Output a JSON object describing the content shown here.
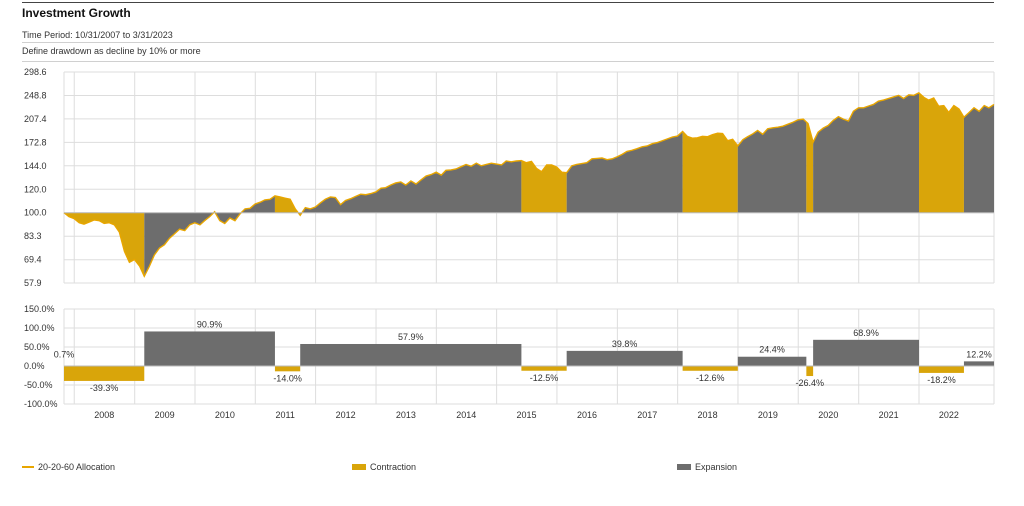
{
  "header": {
    "title": "Investment Growth",
    "time_period": "Time Period: 10/31/2007 to 3/31/2023",
    "drawdown_def": "Define drawdown as decline by 10% or more"
  },
  "colors": {
    "line": "#e8a600",
    "contraction": "#d9a50a",
    "expansion": "#6d6d6d",
    "grid": "#dddddd"
  },
  "legend": [
    {
      "label": "20-20-60 Allocation",
      "kind": "line",
      "color": "#e8a600"
    },
    {
      "label": "Contraction",
      "kind": "box",
      "color": "#d9a50a"
    },
    {
      "label": "Expansion",
      "kind": "box",
      "color": "#6d6d6d"
    }
  ],
  "chart_data": [
    {
      "type": "area",
      "title": "Investment Growth",
      "series": [
        {
          "name": "20-20-60 Allocation"
        }
      ],
      "x_range": [
        "2007-10-31",
        "2023-03-31"
      ],
      "y_ticks": [
        "298.6",
        "248.8",
        "207.4",
        "172.8",
        "144.0",
        "120.0",
        "100.0",
        "83.3",
        "69.4",
        "57.9"
      ],
      "y_scale": "log",
      "ylim": [
        57.9,
        298.6
      ],
      "x_ticks": [
        "2008",
        "2009",
        "2010",
        "2011",
        "2012",
        "2013",
        "2014",
        "2015",
        "2016",
        "2017",
        "2018",
        "2019",
        "2020",
        "2021",
        "2022"
      ],
      "baseline": 100,
      "points": [
        [
          "2007-10-31",
          100.0
        ],
        [
          "2007-11-30",
          97.0
        ],
        [
          "2007-12-31",
          95.5
        ],
        [
          "2008-01-31",
          92.5
        ],
        [
          "2008-02-29",
          91.5
        ],
        [
          "2008-03-31",
          93.0
        ],
        [
          "2008-04-30",
          94.5
        ],
        [
          "2008-05-31",
          94.0
        ],
        [
          "2008-06-30",
          92.0
        ],
        [
          "2008-07-31",
          92.5
        ],
        [
          "2008-08-31",
          91.0
        ],
        [
          "2008-09-30",
          86.0
        ],
        [
          "2008-10-31",
          74.0
        ],
        [
          "2008-11-30",
          68.0
        ],
        [
          "2008-12-31",
          69.5
        ],
        [
          "2009-01-31",
          66.0
        ],
        [
          "2009-02-28",
          61.0
        ],
        [
          "2009-03-31",
          66.0
        ],
        [
          "2009-04-30",
          72.0
        ],
        [
          "2009-05-31",
          76.0
        ],
        [
          "2009-06-30",
          78.0
        ],
        [
          "2009-07-31",
          82.0
        ],
        [
          "2009-08-31",
          85.0
        ],
        [
          "2009-09-30",
          88.0
        ],
        [
          "2009-10-31",
          87.0
        ],
        [
          "2009-11-30",
          91.0
        ],
        [
          "2009-12-31",
          92.5
        ],
        [
          "2010-01-31",
          91.0
        ],
        [
          "2010-02-28",
          94.0
        ],
        [
          "2010-03-31",
          97.0
        ],
        [
          "2010-04-30",
          100.7
        ],
        [
          "2010-05-31",
          94.0
        ],
        [
          "2010-06-30",
          92.0
        ],
        [
          "2010-07-31",
          96.0
        ],
        [
          "2010-08-31",
          94.0
        ],
        [
          "2010-09-30",
          99.0
        ],
        [
          "2010-10-31",
          103.0
        ],
        [
          "2010-11-30",
          103.5
        ],
        [
          "2010-12-31",
          107.0
        ],
        [
          "2011-01-31",
          108.5
        ],
        [
          "2011-02-28",
          110.5
        ],
        [
          "2011-03-31",
          111.0
        ],
        [
          "2011-04-30",
          114.0
        ],
        [
          "2011-05-31",
          113.0
        ],
        [
          "2011-06-30",
          112.0
        ],
        [
          "2011-07-31",
          111.0
        ],
        [
          "2011-08-31",
          103.0
        ],
        [
          "2011-09-30",
          98.0
        ],
        [
          "2011-10-31",
          104.0
        ],
        [
          "2011-11-30",
          103.0
        ],
        [
          "2011-12-31",
          104.5
        ],
        [
          "2012-01-31",
          108.0
        ],
        [
          "2012-02-29",
          111.0
        ],
        [
          "2012-03-31",
          113.0
        ],
        [
          "2012-04-30",
          112.5
        ],
        [
          "2012-05-31",
          106.5
        ],
        [
          "2012-06-30",
          110.0
        ],
        [
          "2012-07-31",
          111.5
        ],
        [
          "2012-08-31",
          113.5
        ],
        [
          "2012-09-30",
          115.5
        ],
        [
          "2012-10-31",
          115.0
        ],
        [
          "2012-11-30",
          116.0
        ],
        [
          "2012-12-31",
          117.5
        ],
        [
          "2013-01-31",
          121.0
        ],
        [
          "2013-02-28",
          121.5
        ],
        [
          "2013-03-31",
          124.0
        ],
        [
          "2013-04-30",
          126.0
        ],
        [
          "2013-05-31",
          127.0
        ],
        [
          "2013-06-30",
          124.0
        ],
        [
          "2013-07-31",
          128.0
        ],
        [
          "2013-08-31",
          125.0
        ],
        [
          "2013-09-30",
          129.0
        ],
        [
          "2013-10-31",
          133.0
        ],
        [
          "2013-11-30",
          134.5
        ],
        [
          "2013-12-31",
          137.0
        ],
        [
          "2014-01-31",
          134.0
        ],
        [
          "2014-02-28",
          139.0
        ],
        [
          "2014-03-31",
          139.5
        ],
        [
          "2014-04-30",
          140.5
        ],
        [
          "2014-05-31",
          143.0
        ],
        [
          "2014-06-30",
          145.5
        ],
        [
          "2014-07-31",
          143.5
        ],
        [
          "2014-08-31",
          147.0
        ],
        [
          "2014-09-30",
          144.0
        ],
        [
          "2014-10-31",
          145.5
        ],
        [
          "2014-11-30",
          147.0
        ],
        [
          "2014-12-31",
          146.0
        ],
        [
          "2015-01-31",
          145.0
        ],
        [
          "2015-02-28",
          149.5
        ],
        [
          "2015-03-31",
          148.5
        ],
        [
          "2015-04-30",
          149.5
        ],
        [
          "2015-05-31",
          150.0
        ],
        [
          "2015-06-30",
          147.5
        ],
        [
          "2015-07-31",
          149.0
        ],
        [
          "2015-08-31",
          141.0
        ],
        [
          "2015-09-30",
          137.5
        ],
        [
          "2015-10-31",
          145.0
        ],
        [
          "2015-11-30",
          145.0
        ],
        [
          "2015-12-31",
          142.5
        ],
        [
          "2016-01-31",
          137.0
        ],
        [
          "2016-02-29",
          136.5
        ],
        [
          "2016-03-31",
          144.0
        ],
        [
          "2016-04-30",
          145.5
        ],
        [
          "2016-05-31",
          146.5
        ],
        [
          "2016-06-30",
          147.5
        ],
        [
          "2016-07-31",
          152.0
        ],
        [
          "2016-08-31",
          152.5
        ],
        [
          "2016-09-30",
          153.0
        ],
        [
          "2016-10-31",
          151.0
        ],
        [
          "2016-11-30",
          152.0
        ],
        [
          "2016-12-31",
          154.5
        ],
        [
          "2017-01-31",
          157.5
        ],
        [
          "2017-02-28",
          161.0
        ],
        [
          "2017-03-31",
          162.5
        ],
        [
          "2017-04-30",
          164.5
        ],
        [
          "2017-05-31",
          167.0
        ],
        [
          "2017-06-30",
          168.0
        ],
        [
          "2017-07-31",
          171.0
        ],
        [
          "2017-08-31",
          172.5
        ],
        [
          "2017-09-30",
          175.0
        ],
        [
          "2017-10-31",
          177.5
        ],
        [
          "2017-11-30",
          180.0
        ],
        [
          "2017-12-31",
          181.5
        ],
        [
          "2018-01-31",
          188.0
        ],
        [
          "2018-02-28",
          181.0
        ],
        [
          "2018-03-31",
          178.5
        ],
        [
          "2018-04-30",
          179.0
        ],
        [
          "2018-05-31",
          181.0
        ],
        [
          "2018-06-30",
          180.5
        ],
        [
          "2018-07-31",
          183.5
        ],
        [
          "2018-08-31",
          185.5
        ],
        [
          "2018-09-30",
          185.0
        ],
        [
          "2018-10-31",
          175.0
        ],
        [
          "2018-11-30",
          177.0
        ],
        [
          "2018-12-31",
          168.0
        ],
        [
          "2019-01-31",
          176.5
        ],
        [
          "2019-02-28",
          180.5
        ],
        [
          "2019-03-31",
          184.5
        ],
        [
          "2019-04-30",
          189.5
        ],
        [
          "2019-05-31",
          184.0
        ],
        [
          "2019-06-30",
          192.0
        ],
        [
          "2019-07-31",
          193.5
        ],
        [
          "2019-08-31",
          194.5
        ],
        [
          "2019-09-30",
          196.0
        ],
        [
          "2019-10-31",
          199.0
        ],
        [
          "2019-11-30",
          202.0
        ],
        [
          "2019-12-31",
          206.0
        ],
        [
          "2020-01-31",
          207.0
        ],
        [
          "2020-02-29",
          200.0
        ],
        [
          "2020-03-31",
          173.0
        ],
        [
          "2020-04-30",
          187.0
        ],
        [
          "2020-05-31",
          193.0
        ],
        [
          "2020-06-30",
          197.0
        ],
        [
          "2020-07-31",
          205.0
        ],
        [
          "2020-08-31",
          211.0
        ],
        [
          "2020-09-30",
          207.0
        ],
        [
          "2020-10-31",
          204.0
        ],
        [
          "2020-11-30",
          220.0
        ],
        [
          "2020-12-31",
          226.0
        ],
        [
          "2021-01-31",
          226.0
        ],
        [
          "2021-02-28",
          229.0
        ],
        [
          "2021-03-31",
          232.0
        ],
        [
          "2021-04-30",
          238.0
        ],
        [
          "2021-05-31",
          240.0
        ],
        [
          "2021-06-30",
          243.0
        ],
        [
          "2021-07-31",
          246.0
        ],
        [
          "2021-08-31",
          249.0
        ],
        [
          "2021-09-30",
          243.0
        ],
        [
          "2021-10-31",
          250.0
        ],
        [
          "2021-11-30",
          249.0
        ],
        [
          "2021-12-31",
          254.0
        ],
        [
          "2022-01-31",
          245.0
        ],
        [
          "2022-02-28",
          240.0
        ],
        [
          "2022-03-31",
          244.0
        ],
        [
          "2022-04-30",
          229.0
        ],
        [
          "2022-05-31",
          230.0
        ],
        [
          "2022-06-30",
          218.0
        ],
        [
          "2022-07-31",
          230.0
        ],
        [
          "2022-08-31",
          224.0
        ],
        [
          "2022-09-30",
          210.0
        ],
        [
          "2022-10-31",
          218.0
        ],
        [
          "2022-11-30",
          226.0
        ],
        [
          "2022-12-31",
          220.0
        ],
        [
          "2023-01-31",
          230.0
        ],
        [
          "2023-02-28",
          226.0
        ],
        [
          "2023-03-31",
          232.0
        ]
      ],
      "regimes": [
        {
          "type": "contraction",
          "start": "2007-10-31",
          "end": "2009-02-28"
        },
        {
          "type": "expansion",
          "start": "2009-02-28",
          "end": "2011-04-30"
        },
        {
          "type": "contraction",
          "start": "2011-04-30",
          "end": "2011-09-30"
        },
        {
          "type": "expansion",
          "start": "2011-09-30",
          "end": "2015-05-31"
        },
        {
          "type": "contraction",
          "start": "2015-05-31",
          "end": "2016-02-29"
        },
        {
          "type": "expansion",
          "start": "2016-02-29",
          "end": "2018-01-31"
        },
        {
          "type": "contraction",
          "start": "2018-01-31",
          "end": "2018-12-31"
        },
        {
          "type": "expansion",
          "start": "2018-12-31",
          "end": "2020-02-19"
        },
        {
          "type": "contraction",
          "start": "2020-02-19",
          "end": "2020-03-31"
        },
        {
          "type": "expansion",
          "start": "2020-03-31",
          "end": "2022-01-01"
        },
        {
          "type": "contraction",
          "start": "2022-01-01",
          "end": "2022-09-30"
        },
        {
          "type": "expansion",
          "start": "2022-09-30",
          "end": "2023-03-31"
        }
      ]
    },
    {
      "type": "bar",
      "y_ticks": [
        "150.0%",
        "100.0%",
        "50.0%",
        "0.0%",
        "-50.0%",
        "-100.0%"
      ],
      "ylim": [
        -100,
        150
      ],
      "bars": [
        {
          "type": "contraction",
          "start": "2007-10-31",
          "end": "2009-02-28",
          "value": -39.3,
          "label": "-39.3%"
        },
        {
          "type": "expansion",
          "start": "2009-02-28",
          "end": "2011-04-30",
          "value": 90.9,
          "label": "90.9%"
        },
        {
          "type": "contraction",
          "start": "2011-04-30",
          "end": "2011-09-30",
          "value": -14.0,
          "label": "-14.0%"
        },
        {
          "type": "expansion",
          "start": "2011-09-30",
          "end": "2015-05-31",
          "value": 57.9,
          "label": "57.9%"
        },
        {
          "type": "contraction",
          "start": "2015-05-31",
          "end": "2016-02-29",
          "value": -12.5,
          "label": "-12.5%"
        },
        {
          "type": "expansion",
          "start": "2016-02-29",
          "end": "2018-01-31",
          "value": 39.8,
          "label": "39.8%"
        },
        {
          "type": "contraction",
          "start": "2018-01-31",
          "end": "2018-12-31",
          "value": -12.6,
          "label": "-12.6%"
        },
        {
          "type": "expansion",
          "start": "2018-12-31",
          "end": "2020-02-19",
          "value": 24.4,
          "label": "24.4%"
        },
        {
          "type": "contraction",
          "start": "2020-02-19",
          "end": "2020-03-31",
          "value": -26.4,
          "label": "-26.4%"
        },
        {
          "type": "expansion",
          "start": "2020-03-31",
          "end": "2022-01-01",
          "value": 68.9,
          "label": "68.9%"
        },
        {
          "type": "contraction",
          "start": "2022-01-01",
          "end": "2022-09-30",
          "value": -18.2,
          "label": "-18.2%"
        },
        {
          "type": "expansion",
          "start": "2022-09-30",
          "end": "2023-03-31",
          "value": 12.2,
          "label": "12.2%"
        }
      ],
      "extra_labels": [
        {
          "date": "2007-10-31",
          "value": 0.7,
          "label": "0.7%"
        }
      ]
    }
  ]
}
